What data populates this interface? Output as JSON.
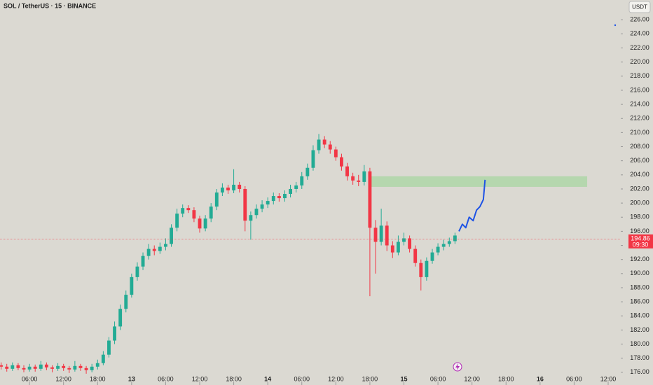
{
  "chart_data": {
    "type": "candlestick",
    "title": "SOL / TetherUS · 15 · BINANCE",
    "currency_button": "USDT",
    "up_color": "#22ab94",
    "down_color": "#f23645",
    "x": [
      1,
      2,
      3,
      4,
      5,
      6,
      7,
      8,
      9,
      10,
      11,
      12,
      13,
      14,
      15,
      16,
      17,
      18,
      19,
      20,
      21,
      22,
      23,
      24,
      25,
      26,
      27,
      28,
      29,
      30,
      31,
      32,
      33,
      34,
      35,
      36,
      37,
      38,
      39,
      40,
      41,
      42,
      43,
      44,
      45,
      46,
      47,
      48,
      49,
      50,
      51,
      52,
      53,
      54,
      55,
      56,
      57,
      58,
      59,
      60,
      61,
      62,
      63,
      64,
      65,
      66,
      67,
      68,
      69,
      70,
      71,
      72,
      73,
      74,
      75,
      76,
      77,
      78,
      79,
      80,
      81
    ],
    "open": [
      177.0,
      176.8,
      176.5,
      177.0,
      176.6,
      176.4,
      176.8,
      176.5,
      177.1,
      176.7,
      176.5,
      176.9,
      176.6,
      176.4,
      176.9,
      176.6,
      176.3,
      176.8,
      177.3,
      178.5,
      180.5,
      182.5,
      185.0,
      187.0,
      189.5,
      191.0,
      192.5,
      193.5,
      193.2,
      193.8,
      194.2,
      196.5,
      198.5,
      199.3,
      199.0,
      197.8,
      196.4,
      197.8,
      199.5,
      201.5,
      202.2,
      201.8,
      202.6,
      202.0,
      197.5,
      198.3,
      199.2,
      199.8,
      200.3,
      201.0,
      200.7,
      201.3,
      202.0,
      202.5,
      203.8,
      205.0,
      207.5,
      209.0,
      208.3,
      207.6,
      206.5,
      205.2,
      203.8,
      203.2,
      203.0,
      204.5,
      196.5,
      194.5,
      196.8,
      194.0,
      193.0,
      194.5,
      195.0,
      193.5,
      191.5,
      189.5,
      191.8,
      193.0,
      193.8,
      194.2,
      194.6
    ],
    "high": [
      177.4,
      177.2,
      177.4,
      177.3,
      177.0,
      177.2,
      177.1,
      177.6,
      177.4,
      177.0,
      177.3,
      177.2,
      176.9,
      177.6,
      177.2,
      176.9,
      177.2,
      177.8,
      179.0,
      181.0,
      183.2,
      185.6,
      187.6,
      190.0,
      191.6,
      193.0,
      194.2,
      194.0,
      194.4,
      195.0,
      197.0,
      199.2,
      199.8,
      199.7,
      199.4,
      198.2,
      198.3,
      200.0,
      202.0,
      202.8,
      202.6,
      204.8,
      203.0,
      202.4,
      198.8,
      199.8,
      200.4,
      200.8,
      201.5,
      201.4,
      201.8,
      202.6,
      203.0,
      204.4,
      205.6,
      208.2,
      209.8,
      209.5,
      208.8,
      208.0,
      207.0,
      205.7,
      204.3,
      204.0,
      205.4,
      205.0,
      197.6,
      199.2,
      197.4,
      194.6,
      195.4,
      195.8,
      195.4,
      194.0,
      192.0,
      192.3,
      193.5,
      194.3,
      194.8,
      195.1,
      195.8
    ],
    "low": [
      176.4,
      176.1,
      176.2,
      176.3,
      176.0,
      176.1,
      176.1,
      176.2,
      176.3,
      176.0,
      176.2,
      176.2,
      175.9,
      176.1,
      176.2,
      175.8,
      176.0,
      176.4,
      177.0,
      178.1,
      180.0,
      182.0,
      184.5,
      186.6,
      189.0,
      190.5,
      192.0,
      192.6,
      192.8,
      193.3,
      193.8,
      196.0,
      198.0,
      198.6,
      197.3,
      195.8,
      196.0,
      197.3,
      199.0,
      201.0,
      201.3,
      201.4,
      201.5,
      196.0,
      194.8,
      197.8,
      198.7,
      199.3,
      199.8,
      200.2,
      200.2,
      200.8,
      201.5,
      202.0,
      203.3,
      204.6,
      207.0,
      207.8,
      207.0,
      206.0,
      204.6,
      203.2,
      202.6,
      202.4,
      202.5,
      186.8,
      190.0,
      194.0,
      193.2,
      192.2,
      192.6,
      194.0,
      193.0,
      191.0,
      187.6,
      189.0,
      191.4,
      192.6,
      193.3,
      193.8,
      194.2
    ],
    "close": [
      176.8,
      176.5,
      177.0,
      176.6,
      176.4,
      176.8,
      176.5,
      177.1,
      176.7,
      176.5,
      176.9,
      176.6,
      176.4,
      176.9,
      176.6,
      176.3,
      176.8,
      177.3,
      178.5,
      180.5,
      182.5,
      185.0,
      187.0,
      189.5,
      191.0,
      192.5,
      193.5,
      193.2,
      193.8,
      194.2,
      196.5,
      198.5,
      199.3,
      199.0,
      197.8,
      196.4,
      197.8,
      199.5,
      201.5,
      202.2,
      201.8,
      202.6,
      202.0,
      197.5,
      198.3,
      199.2,
      199.8,
      200.3,
      201.0,
      200.7,
      201.3,
      202.0,
      202.5,
      203.8,
      205.0,
      207.5,
      209.0,
      208.3,
      207.6,
      206.5,
      205.2,
      203.8,
      203.2,
      203.0,
      204.5,
      196.5,
      194.5,
      196.8,
      194.0,
      193.0,
      194.5,
      195.0,
      193.5,
      191.5,
      189.5,
      191.8,
      193.0,
      193.8,
      194.2,
      194.6,
      195.4
    ],
    "projection": {
      "color": "#1e53e5",
      "x": [
        81.7,
        82.3,
        82.9,
        83.5,
        84.2,
        84.8,
        85.4,
        86.0,
        86.3
      ],
      "values": [
        196,
        197,
        196.5,
        198,
        197.5,
        199,
        199.5,
        200.5,
        203.3
      ]
    },
    "zone": {
      "color": "#a8d5a2",
      "xlim": [
        65.8,
        104.3
      ],
      "ylim": [
        202.3,
        203.8
      ]
    },
    "last_price": 194.86,
    "countdown": "09:30",
    "xlim": [
      0.8,
      110.1
    ],
    "ylim": [
      174.2,
      228.8
    ],
    "xticks": [
      {
        "value": 6,
        "label": "06:00"
      },
      {
        "value": 12,
        "label": "12:00"
      },
      {
        "value": 18,
        "label": "18:00"
      },
      {
        "value": 24,
        "label": "13"
      },
      {
        "value": 30,
        "label": "06:00"
      },
      {
        "value": 36,
        "label": "12:00"
      },
      {
        "value": 42,
        "label": "18:00"
      },
      {
        "value": 48,
        "label": "14"
      },
      {
        "value": 54,
        "label": "06:00"
      },
      {
        "value": 60,
        "label": "12:00"
      },
      {
        "value": 66,
        "label": "18:00"
      },
      {
        "value": 72,
        "label": "15"
      },
      {
        "value": 78,
        "label": "06:00"
      },
      {
        "value": 84,
        "label": "12:00"
      },
      {
        "value": 90,
        "label": "18:00"
      },
      {
        "value": 96,
        "label": "16"
      },
      {
        "value": 102,
        "label": "06:00"
      },
      {
        "value": 108,
        "label": "12:00"
      }
    ],
    "yticks": [
      {
        "value": 176,
        "label": "176.00"
      },
      {
        "value": 178,
        "label": "178.00"
      },
      {
        "value": 180,
        "label": "180.00"
      },
      {
        "value": 182,
        "label": "182.00"
      },
      {
        "value": 184,
        "label": "184.00"
      },
      {
        "value": 186,
        "label": "186.00"
      },
      {
        "value": 188,
        "label": "188.00"
      },
      {
        "value": 190,
        "label": "190.00"
      },
      {
        "value": 192,
        "label": "192.00"
      },
      {
        "value": 194,
        "label": "194.00"
      },
      {
        "value": 196,
        "label": "196.00"
      },
      {
        "value": 198,
        "label": "198.00"
      },
      {
        "value": 200,
        "label": "200.00"
      },
      {
        "value": 202,
        "label": "202.00"
      },
      {
        "value": 204,
        "label": "204.00"
      },
      {
        "value": 206,
        "label": "206.00"
      },
      {
        "value": 208,
        "label": "208.00"
      },
      {
        "value": 210,
        "label": "210.00"
      },
      {
        "value": 212,
        "label": "212.00"
      },
      {
        "value": 214,
        "label": "214.00"
      },
      {
        "value": 216,
        "label": "216.00"
      },
      {
        "value": 218,
        "label": "218.00"
      },
      {
        "value": 220,
        "label": "220.00"
      },
      {
        "value": 222,
        "label": "222.00"
      },
      {
        "value": 224,
        "label": "224.00"
      },
      {
        "value": 226,
        "label": "226.00"
      }
    ]
  }
}
